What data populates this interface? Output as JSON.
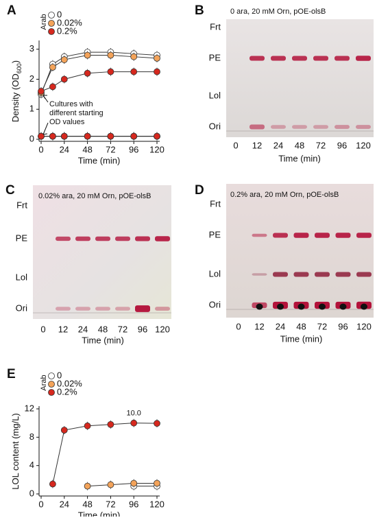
{
  "chart_data": [
    {
      "panel": "A",
      "type": "line",
      "x": [
        0,
        12,
        24,
        48,
        72,
        96,
        120
      ],
      "xlim": [
        0,
        120
      ],
      "xticks": [
        0,
        24,
        48,
        72,
        96,
        120
      ],
      "ylim": [
        0,
        3.2
      ],
      "yticks": [
        0,
        1,
        2,
        3
      ],
      "xlabel": "Time (min)",
      "ylabel": [
        "Density (OD",
        "600",
        ")"
      ],
      "legend_title": "Arab",
      "annotation": [
        "Cultures with",
        "different starting",
        "OD values"
      ],
      "series": [
        {
          "name": "0",
          "color": "#ffffff",
          "values": [
            1.5,
            2.5,
            2.75,
            2.9,
            2.9,
            2.85,
            2.8
          ],
          "values_low": [
            0.1,
            0.1,
            0.1,
            0.1,
            0.1,
            0.1,
            0.1
          ]
        },
        {
          "name": "0.02%",
          "color": "#f3a35a",
          "values": [
            1.55,
            2.4,
            2.65,
            2.8,
            2.8,
            2.75,
            2.7
          ],
          "values_low": [
            0.1,
            0.1,
            0.1,
            0.1,
            0.1,
            0.1,
            0.1
          ]
        },
        {
          "name": "0.2%",
          "color": "#d6281e",
          "values": [
            1.6,
            1.75,
            2.0,
            2.2,
            2.25,
            2.25,
            2.25
          ],
          "values_low": [
            0.1,
            0.1,
            0.1,
            0.1,
            0.1,
            0.1,
            0.1
          ]
        }
      ]
    },
    {
      "panel": "E",
      "type": "line",
      "x": [
        12,
        24,
        48,
        72,
        96,
        120
      ],
      "xlim": [
        0,
        120
      ],
      "xticks": [
        0,
        24,
        48,
        72,
        96,
        120
      ],
      "ylim": [
        0,
        12
      ],
      "yticks": [
        0,
        4,
        8,
        12
      ],
      "xlabel": "Time (min)",
      "ylabel": [
        "LOL content (mg/L)"
      ],
      "legend_title": "Arab",
      "series": [
        {
          "name": "0",
          "color": "#ffffff",
          "values": [
            null,
            null,
            null,
            null,
            1.1,
            1.1
          ]
        },
        {
          "name": "0.02%",
          "color": "#f3a35a",
          "values": [
            null,
            null,
            1.1,
            1.3,
            1.5,
            1.5
          ]
        },
        {
          "name": "0.2%",
          "color": "#d6281e",
          "values": [
            1.4,
            9.0,
            9.6,
            9.8,
            10.0,
            9.95
          ],
          "value_labels": [
            null,
            null,
            null,
            null,
            "10.0",
            null
          ]
        }
      ]
    }
  ],
  "gels": [
    {
      "panel": "B",
      "caption": "0 ara, 20 mM Orn, pOE-olsB",
      "rows": [
        "Frt",
        "PE",
        "Lol",
        "Ori"
      ],
      "lanes": [
        "0",
        "12",
        "24",
        "48",
        "72",
        "96",
        "120"
      ],
      "xlabel": "Time (min)"
    },
    {
      "panel": "C",
      "caption": "0.02% ara, 20 mM Orn, pOE-olsB",
      "rows": [
        "Frt",
        "PE",
        "Lol",
        "Ori"
      ],
      "lanes": [
        "0",
        "12",
        "24",
        "48",
        "72",
        "96",
        "120"
      ],
      "xlabel": "Time (min)"
    },
    {
      "panel": "D",
      "caption": "0.2% ara, 20 mM Orn, pOE-olsB",
      "rows": [
        "Frt",
        "PE",
        "Lol",
        "Ori"
      ],
      "lanes": [
        "0",
        "12",
        "24",
        "48",
        "72",
        "96",
        "120"
      ],
      "xlabel": "Time (min)"
    }
  ]
}
